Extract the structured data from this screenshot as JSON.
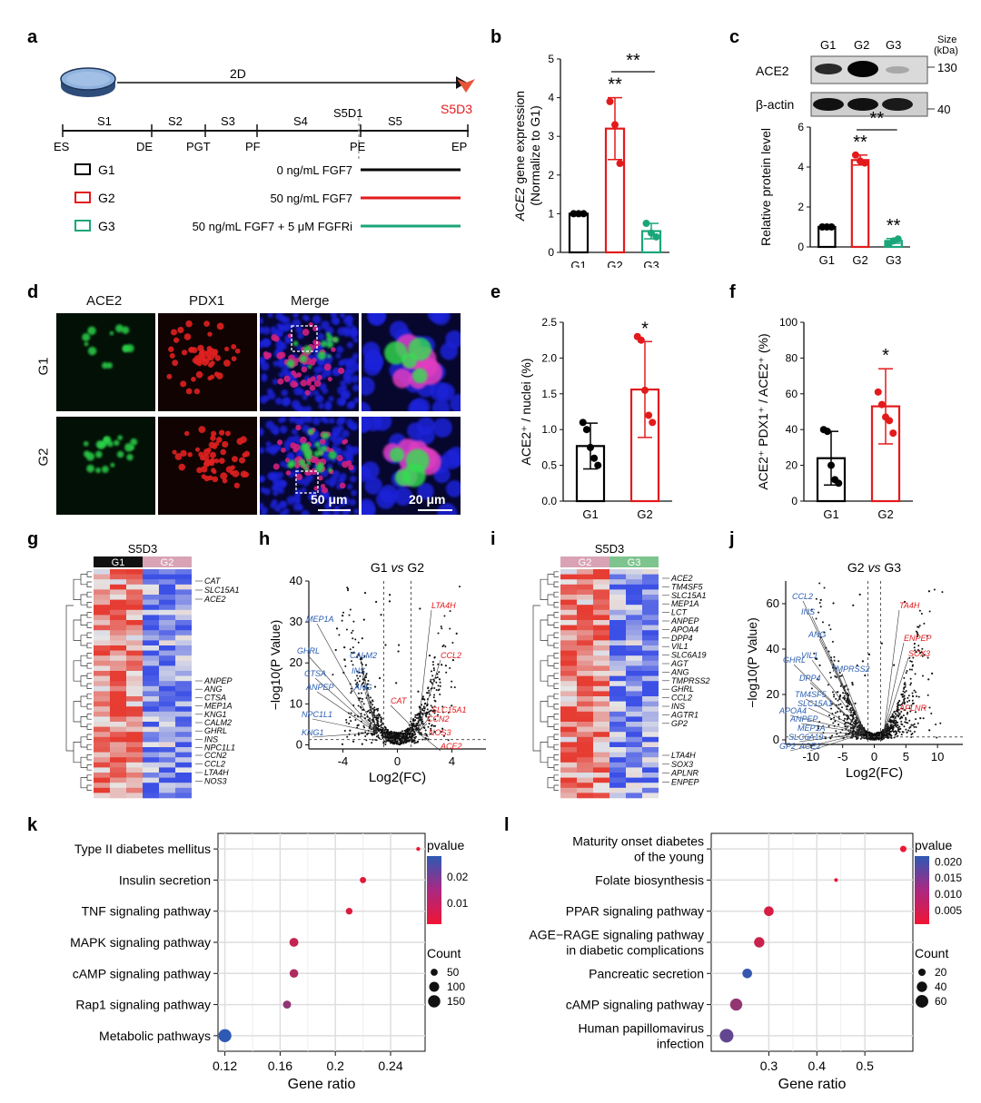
{
  "panel_letters": [
    "a",
    "b",
    "c",
    "d",
    "e",
    "f",
    "g",
    "h",
    "i",
    "j",
    "k",
    "l"
  ],
  "panel_a": {
    "dish_label": "2D",
    "endpoint_label": "S5D3",
    "stages": [
      "S1",
      "S2",
      "S3",
      "S4",
      "S5D1",
      "S5"
    ],
    "milestones": [
      "ES",
      "DE",
      "PGT",
      "PF",
      "PE",
      "EP"
    ],
    "groups": [
      {
        "name": "G1",
        "condition": "0 ng/mL FGF7",
        "color": "#000000"
      },
      {
        "name": "G2",
        "condition": "50 ng/mL FGF7",
        "color": "#e31a1c"
      },
      {
        "name": "G3",
        "condition": "50 ng/mL FGF7 + 5 μM FGFRi",
        "color": "#1aa67a"
      }
    ]
  },
  "panel_c_blot": {
    "lanes": [
      "G1",
      "G2",
      "G3"
    ],
    "size_label": "Size",
    "size_unit": "(kDa)",
    "bands": [
      {
        "name": "ACE2",
        "size": "130"
      },
      {
        "name": "β-actin",
        "size": "40"
      }
    ]
  },
  "panel_d": {
    "columns": [
      "ACE2",
      "PDX1",
      "Merge"
    ],
    "rows": [
      "G1",
      "G2"
    ],
    "scale_bars": [
      "50 μm",
      "20 μm"
    ]
  },
  "panel_g": {
    "title": "S5D3",
    "groups": [
      "G1",
      "G2"
    ],
    "genes_top": [
      "CAT",
      "SLC15A1",
      "ACE2"
    ],
    "genes_mid": [
      "ANPEP",
      "ANG",
      "CTSA",
      "MEP1A",
      "KNG1",
      "CALM2",
      "GHRL",
      "INS",
      "NPC1L1"
    ],
    "genes_bot": [
      "CCN2",
      "CCL2",
      "LTA4H",
      "NOS3"
    ]
  },
  "panel_i": {
    "title": "S5D3",
    "groups": [
      "G2",
      "G3"
    ],
    "genes_top": [
      "ACE2",
      "TM4SF5",
      "SLC15A1",
      "MEP1A",
      "LCT",
      "ANPEP",
      "APOA4",
      "DPP4",
      "VIL1",
      "SLC6A19",
      "AGT",
      "ANG",
      "TMPRSS2",
      "GHRL",
      "CCL2",
      "INS",
      "AGTR1",
      "GP2"
    ],
    "genes_bot": [
      "LTA4H",
      "SOX3",
      "APLNR",
      "ENPEP"
    ]
  },
  "chart_data": [
    {
      "id": "b",
      "type": "bar",
      "categories": [
        "G1",
        "G2",
        "G3"
      ],
      "values": [
        1.0,
        3.2,
        0.55
      ],
      "errors": [
        0.03,
        0.8,
        0.2
      ],
      "points": [
        [
          1.0,
          1.0,
          1.0
        ],
        [
          3.9,
          3.3,
          2.3
        ],
        [
          0.75,
          0.5,
          0.4
        ]
      ],
      "colors": [
        "#000000",
        "#e31a1c",
        "#1aa67a"
      ],
      "ylabel_italic": "ACE2",
      "ylabel_rest": " gene expression",
      "ylabel2": "(Normalize to G1)",
      "ylim": [
        0,
        5
      ],
      "yticks": [
        0,
        1,
        2,
        3,
        4,
        5
      ],
      "sig_above": [
        "",
        "**",
        ""
      ],
      "bracket": {
        "from": 1,
        "to": 2,
        "label": "**"
      }
    },
    {
      "id": "c",
      "type": "bar",
      "categories": [
        "G1",
        "G2",
        "G3"
      ],
      "values": [
        1.0,
        4.35,
        0.3
      ],
      "errors": [
        0.02,
        0.25,
        0.12
      ],
      "points": [
        [
          1.0,
          1.0,
          1.0
        ],
        [
          4.6,
          4.3,
          4.2
        ],
        [
          0.15,
          0.3,
          0.4
        ]
      ],
      "colors": [
        "#000000",
        "#e31a1c",
        "#1aa67a"
      ],
      "ylabel": "Relative protein level",
      "ylim": [
        0,
        6
      ],
      "yticks": [
        0,
        2,
        4,
        6
      ],
      "sig_above": [
        "",
        "**",
        "**"
      ],
      "bracket": {
        "from": 1,
        "to": 2,
        "label": "**"
      }
    },
    {
      "id": "e",
      "type": "bar",
      "categories": [
        "G1",
        "G2"
      ],
      "values": [
        0.77,
        1.56
      ],
      "errors": [
        0.32,
        0.67
      ],
      "points": [
        [
          1.1,
          1.0,
          0.75,
          0.6,
          0.5
        ],
        [
          2.3,
          2.25,
          1.55,
          1.2,
          1.1
        ]
      ],
      "colors": [
        "#000000",
        "#e31a1c"
      ],
      "ylabel": "ACE2⁺ / nuclei (%)",
      "ylim": [
        0,
        2.5
      ],
      "yticks": [
        0.0,
        0.5,
        1.0,
        1.5,
        2.0,
        2.5
      ],
      "sig_above": [
        "",
        "*"
      ]
    },
    {
      "id": "f",
      "type": "bar",
      "categories": [
        "G1",
        "G2"
      ],
      "values": [
        24,
        53
      ],
      "errors": [
        15,
        21
      ],
      "points": [
        [
          40,
          39,
          20,
          12,
          10
        ],
        [
          61,
          54,
          47,
          45,
          38
        ]
      ],
      "colors": [
        "#000000",
        "#e31a1c"
      ],
      "ylabel": "ACE2⁺ PDX1⁺ / ACE2⁺ (%)",
      "ylim": [
        0,
        100
      ],
      "yticks": [
        0,
        20,
        40,
        60,
        80,
        100
      ],
      "sig_above": [
        "",
        "*"
      ]
    },
    {
      "id": "h",
      "type": "scatter",
      "title_a": "G1",
      "title_vs": "vs",
      "title_b": "G2",
      "xlabel": "Log2(FC)",
      "ylabel": "−log10(P Value)",
      "xlim": [
        -6.5,
        6.5
      ],
      "ylim": [
        -1,
        40
      ],
      "xticks": [
        -4,
        0,
        4
      ],
      "yticks": [
        0,
        10,
        20,
        30,
        40
      ],
      "labels_down": [
        "MEP1A",
        "GHRL",
        "CTSA",
        "ANPEP",
        "NPC1L1",
        "KNG1",
        "CALM2",
        "INS",
        "ANG"
      ],
      "labels_up": [
        "LTA4H",
        "CCL2",
        "CAT",
        "SLC15A1",
        "CCN2",
        "NOS3",
        "ACE2"
      ]
    },
    {
      "id": "j",
      "type": "scatter",
      "title_a": "G2",
      "title_vs": "vs",
      "title_b": "G3",
      "xlabel": "Log2(FC)",
      "ylabel": "−log10(P Value)",
      "xlim": [
        -14,
        14
      ],
      "ylim": [
        -2,
        70
      ],
      "xticks": [
        -10,
        -5,
        0,
        5,
        10
      ],
      "yticks": [
        0,
        20,
        40,
        60
      ],
      "labels_down": [
        "CCL2",
        "INS",
        "ANG",
        "VIL1",
        "GHRL",
        "DPP4",
        "TMPRSS2",
        "TM4SF5",
        "SLC15A1",
        "APOA4",
        "ANPEP",
        "MEP1A",
        "SLC6A19",
        "GP2",
        "ACE2"
      ],
      "labels_up": [
        "TA4H",
        "ENPEP",
        "SOX3",
        "APLNR"
      ]
    },
    {
      "id": "k",
      "type": "scatter",
      "categories": [
        "Type II diabetes mellitus",
        "Insulin secretion",
        "TNF signaling pathway",
        "MAPK signaling pathway",
        "cAMP signaling pathway",
        "Rap1 signaling pathway",
        "Metabolic pathways"
      ],
      "gene_ratio": [
        0.26,
        0.22,
        0.21,
        0.17,
        0.17,
        0.165,
        0.12
      ],
      "count": [
        15,
        40,
        45,
        80,
        75,
        65,
        170
      ],
      "pvalue": [
        0.003,
        0.005,
        0.006,
        0.009,
        0.012,
        0.016,
        0.029
      ],
      "xlabel": "Gene ratio",
      "xlim": [
        0.115,
        0.265
      ],
      "xticks": [
        0.12,
        0.16,
        0.2,
        0.24
      ],
      "pvalue_title": "pvalue",
      "pvalue_ticks": [
        "0.02",
        "0.01"
      ],
      "pvalue_range": [
        0.003,
        0.029
      ],
      "count_title": "Count",
      "count_ticks": [
        50,
        100,
        150
      ]
    },
    {
      "id": "l",
      "type": "scatter",
      "categories": [
        "Maturity onset diabetes|of the young",
        "Folate biosynthesis",
        "PPAR signaling pathway",
        "AGE−RAGE signaling pathway|in diabetic complications",
        "Pancreatic secretion",
        "cAMP signaling pathway",
        "Human papillomavirus|infection"
      ],
      "gene_ratio": [
        0.58,
        0.44,
        0.3,
        0.28,
        0.255,
        0.232,
        0.212
      ],
      "count": [
        15,
        5,
        35,
        40,
        35,
        55,
        70
      ],
      "pvalue": [
        0.001,
        0.0015,
        0.003,
        0.005,
        0.021,
        0.011,
        0.016
      ],
      "xlabel": "Gene ratio",
      "xlim": [
        0.18,
        0.6
      ],
      "xticks": [
        0.3,
        0.4,
        0.5
      ],
      "pvalue_title": "pvalue",
      "pvalue_ticks": [
        "0.020",
        "0.015",
        "0.010",
        "0.005"
      ],
      "pvalue_range": [
        0.0005,
        0.022
      ],
      "count_title": "Count",
      "count_ticks": [
        20,
        40,
        60
      ]
    }
  ]
}
